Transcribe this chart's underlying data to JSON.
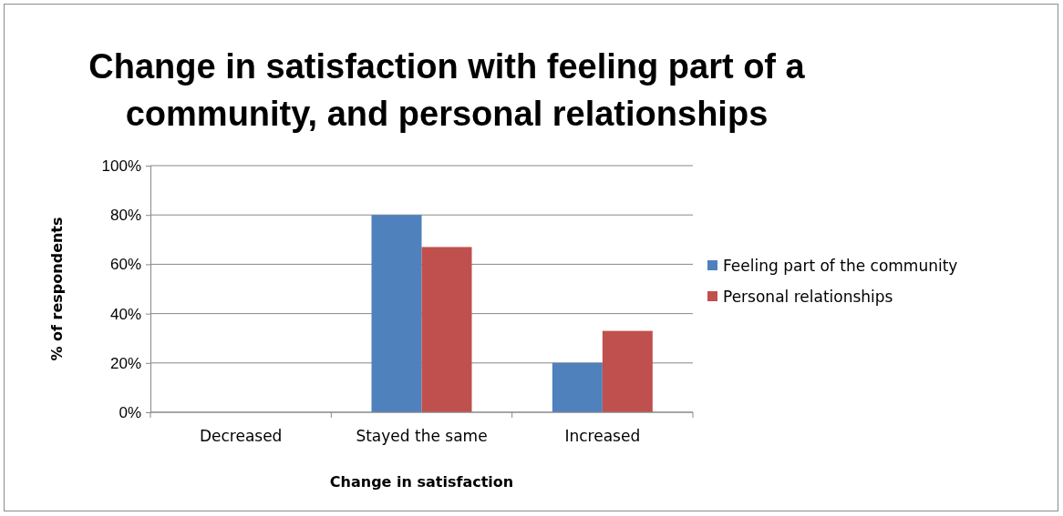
{
  "chart_data": {
    "type": "bar",
    "title": "Change in satisfaction with feeling part of a community, and personal relationships",
    "xlabel": "Change in satisfaction",
    "ylabel": "% of respondents",
    "categories": [
      "Decreased",
      "Stayed the same",
      "Increased"
    ],
    "series": [
      {
        "name": "Feeling part of the community",
        "color": "#4f81bd",
        "values": [
          0,
          80,
          20
        ]
      },
      {
        "name": "Personal relationships",
        "color": "#c0504d",
        "values": [
          0,
          67,
          33
        ]
      }
    ],
    "ylim": [
      0,
      100
    ],
    "yticks": [
      {
        "value": 0,
        "label": "0%"
      },
      {
        "value": 20,
        "label": "20%"
      },
      {
        "value": 40,
        "label": "40%"
      },
      {
        "value": 60,
        "label": "60%"
      },
      {
        "value": 80,
        "label": "80%"
      },
      {
        "value": 100,
        "label": "100%"
      }
    ],
    "grid": "y",
    "legend": "right"
  }
}
